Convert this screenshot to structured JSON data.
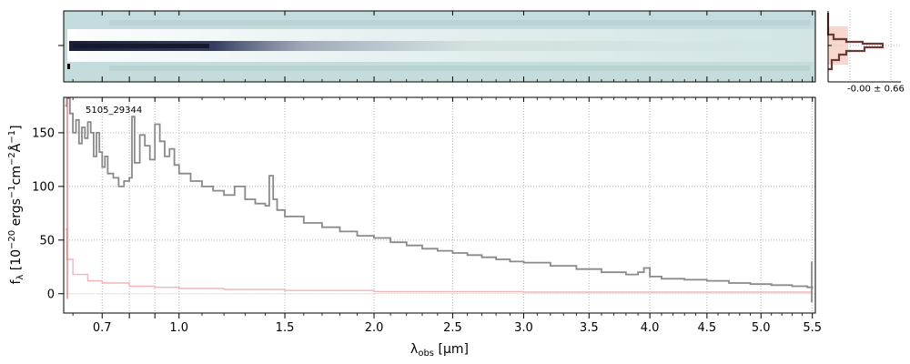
{
  "chart_data": [
    {
      "type": "heatmap",
      "panel": "2d-spectrum",
      "background_color": "#c5dcdc",
      "trace_color": "#1a1f3a"
    },
    {
      "type": "line",
      "panel": "1d-spectrum",
      "annotation": "5105_29344",
      "xlabel_parts": {
        "main": "λ",
        "sub": "obs",
        "unit": " [μm]"
      },
      "ylabel_parts": {
        "f": "f",
        "sub": "λ",
        "open": " [10",
        "exp1": "−20",
        "mid1": " ergs",
        "exp2": "−1",
        "mid2": "cm",
        "exp3": "−2",
        "mid3": "Å",
        "exp4": "−1",
        "close": "]"
      },
      "x_ticks": [
        "0.7",
        "0.8",
        "0.9",
        "1.0",
        "1.5",
        "2.0",
        "2.5",
        "3.0",
        "3.5",
        "4.0",
        "4.5",
        "5.0",
        "5.5"
      ],
      "x_tick_labels": [
        "0.7",
        "",
        "",
        "1.0",
        "1.5",
        "2.0",
        "2.5",
        "3.0",
        "3.5",
        "4.0",
        "4.5",
        "5.0",
        "5.5"
      ],
      "y_ticks": [
        0,
        50,
        100,
        150
      ],
      "ylim": [
        -18,
        183
      ],
      "xlim": [
        0.57,
        5.53
      ],
      "x_scale": "sqrt",
      "grid": true,
      "series": [
        {
          "color": "#8a8a8a",
          "x": [
            0.575,
            0.58,
            0.59,
            0.6,
            0.61,
            0.62,
            0.63,
            0.64,
            0.65,
            0.66,
            0.67,
            0.68,
            0.69,
            0.7,
            0.71,
            0.72,
            0.74,
            0.76,
            0.78,
            0.8,
            0.81,
            0.82,
            0.84,
            0.86,
            0.88,
            0.9,
            0.92,
            0.94,
            0.96,
            0.98,
            1.0,
            1.05,
            1.1,
            1.15,
            1.2,
            1.25,
            1.3,
            1.35,
            1.4,
            1.42,
            1.44,
            1.46,
            1.5,
            1.6,
            1.7,
            1.8,
            1.9,
            2.0,
            2.1,
            2.2,
            2.3,
            2.4,
            2.5,
            2.6,
            2.7,
            2.8,
            2.9,
            3.0,
            3.2,
            3.4,
            3.6,
            3.8,
            3.9,
            3.95,
            4.0,
            4.1,
            4.3,
            4.5,
            4.7,
            4.9,
            5.1,
            5.3,
            5.45,
            5.5
          ],
          "y": [
            175,
            182,
            168,
            150,
            162,
            140,
            155,
            145,
            160,
            150,
            128,
            150,
            132,
            118,
            128,
            112,
            108,
            100,
            105,
            108,
            165,
            122,
            148,
            138,
            125,
            158,
            142,
            128,
            135,
            120,
            112,
            105,
            100,
            96,
            92,
            100,
            88,
            84,
            82,
            110,
            88,
            78,
            72,
            66,
            62,
            58,
            54,
            52,
            48,
            45,
            42,
            40,
            38,
            36,
            34,
            32,
            30,
            29,
            26,
            23,
            20,
            18,
            20,
            24,
            16,
            14,
            13,
            12,
            10,
            9,
            8,
            7,
            6,
            5
          ]
        },
        {
          "color": "#f2b5b5",
          "x": [
            0.575,
            0.58,
            0.6,
            0.65,
            0.7,
            0.8,
            0.9,
            1.0,
            1.2,
            1.5,
            2.0,
            2.5,
            3.0,
            4.0,
            5.0,
            5.5
          ],
          "y": [
            60,
            32,
            18,
            12,
            10,
            7,
            6,
            5,
            4,
            3,
            2,
            2,
            1.5,
            1.5,
            1.5,
            2
          ]
        }
      ]
    },
    {
      "type": "bar",
      "panel": "cross-dispersion-profile",
      "annotation": "-0.00 ± 0.66",
      "profile_color": "#6b3a3a",
      "fill_color": "#f4c9bd"
    }
  ]
}
